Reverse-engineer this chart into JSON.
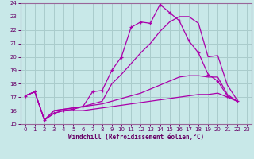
{
  "xlabel": "Windchill (Refroidissement éolien,°C)",
  "background_color": "#c8e8e8",
  "grid_color": "#aacccc",
  "line_color": "#aa00aa",
  "xlim": [
    -0.5,
    23.5
  ],
  "ylim": [
    15,
    24
  ],
  "xticks": [
    0,
    1,
    2,
    3,
    4,
    5,
    6,
    7,
    8,
    9,
    10,
    11,
    12,
    13,
    14,
    15,
    16,
    17,
    18,
    19,
    20,
    21,
    22,
    23
  ],
  "yticks": [
    15,
    16,
    17,
    18,
    19,
    20,
    21,
    22,
    23,
    24
  ],
  "series1_x": [
    0,
    1,
    2,
    3,
    4,
    5,
    6,
    7,
    8,
    9,
    10,
    11,
    12,
    13,
    14,
    15,
    16,
    17,
    18,
    19,
    20,
    21,
    22
  ],
  "series1_y": [
    17.1,
    17.4,
    15.3,
    15.8,
    16.0,
    16.1,
    16.3,
    17.4,
    17.5,
    19.0,
    20.0,
    22.2,
    22.6,
    22.5,
    23.9,
    23.3,
    22.7,
    21.2,
    20.3,
    18.7,
    18.2,
    17.1,
    16.7
  ],
  "series2_x": [
    0,
    1,
    2,
    3,
    4,
    5,
    6,
    7,
    8,
    9,
    10,
    11,
    12,
    13,
    14,
    15,
    16,
    17,
    18,
    19,
    20,
    21,
    22
  ],
  "series2_y": [
    17.1,
    17.4,
    15.3,
    16.0,
    16.1,
    16.2,
    16.3,
    16.5,
    16.7,
    18.0,
    18.7,
    19.5,
    20.3,
    21.0,
    21.9,
    22.6,
    23.0,
    23.0,
    22.5,
    20.0,
    20.1,
    17.9,
    16.8
  ],
  "series3_x": [
    0,
    1,
    2,
    3,
    4,
    5,
    6,
    7,
    8,
    9,
    10,
    11,
    12,
    13,
    14,
    15,
    16,
    17,
    18,
    19,
    20,
    21,
    22
  ],
  "series3_y": [
    17.1,
    17.4,
    15.3,
    16.0,
    16.1,
    16.2,
    16.3,
    16.4,
    16.5,
    16.7,
    16.9,
    17.1,
    17.3,
    17.6,
    17.9,
    18.2,
    18.5,
    18.6,
    18.6,
    18.5,
    18.5,
    17.2,
    16.7
  ],
  "series4_x": [
    0,
    1,
    2,
    3,
    4,
    5,
    6,
    7,
    8,
    9,
    10,
    11,
    12,
    13,
    14,
    15,
    16,
    17,
    18,
    19,
    20,
    21,
    22
  ],
  "series4_y": [
    17.1,
    17.4,
    15.3,
    15.8,
    16.0,
    16.0,
    16.0,
    16.1,
    16.2,
    16.3,
    16.4,
    16.5,
    16.6,
    16.7,
    16.8,
    16.9,
    17.0,
    17.1,
    17.2,
    17.2,
    17.3,
    17.0,
    16.7
  ]
}
